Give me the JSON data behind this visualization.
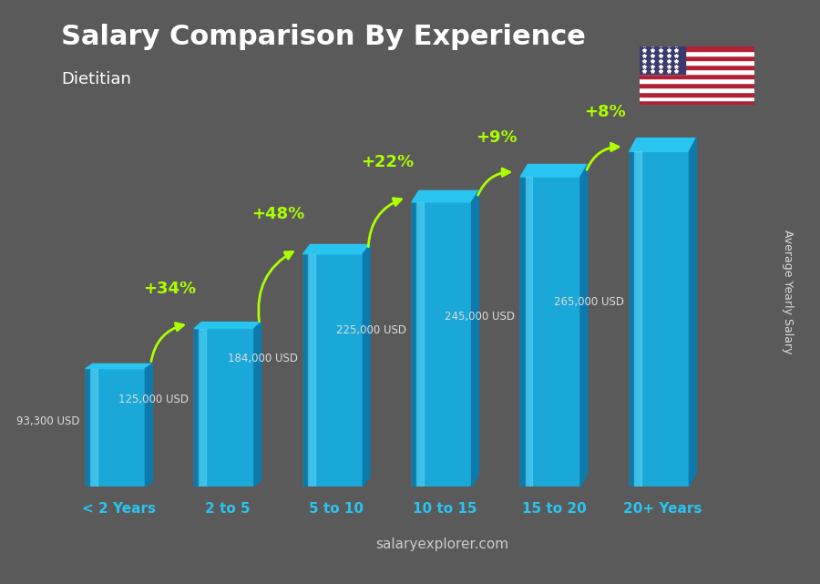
{
  "title": "Salary Comparison By Experience",
  "subtitle": "Dietitian",
  "ylabel": "Average Yearly Salary",
  "footer": "salaryexplorer.com",
  "categories": [
    "< 2 Years",
    "2 to 5",
    "5 to 10",
    "10 to 15",
    "15 to 20",
    "20+ Years"
  ],
  "values": [
    93300,
    125000,
    184000,
    225000,
    245000,
    265000
  ],
  "value_labels": [
    "93,300 USD",
    "125,000 USD",
    "184,000 USD",
    "225,000 USD",
    "245,000 USD",
    "265,000 USD"
  ],
  "pct_labels": [
    "+34%",
    "+48%",
    "+22%",
    "+9%",
    "+8%"
  ],
  "bar_color_top": "#29c4f0",
  "bar_color_mid": "#1aa8d8",
  "bar_color_dark": "#0d7aab",
  "bar_color_side": "#0a5a80",
  "bg_color": "#5a5a5a",
  "title_color": "#ffffff",
  "subtitle_color": "#ffffff",
  "label_color": "#dddddd",
  "pct_color": "#aaff00",
  "footer_color": "#cccccc",
  "cat_color": "#29c4f0",
  "ylim": [
    0,
    310000
  ]
}
